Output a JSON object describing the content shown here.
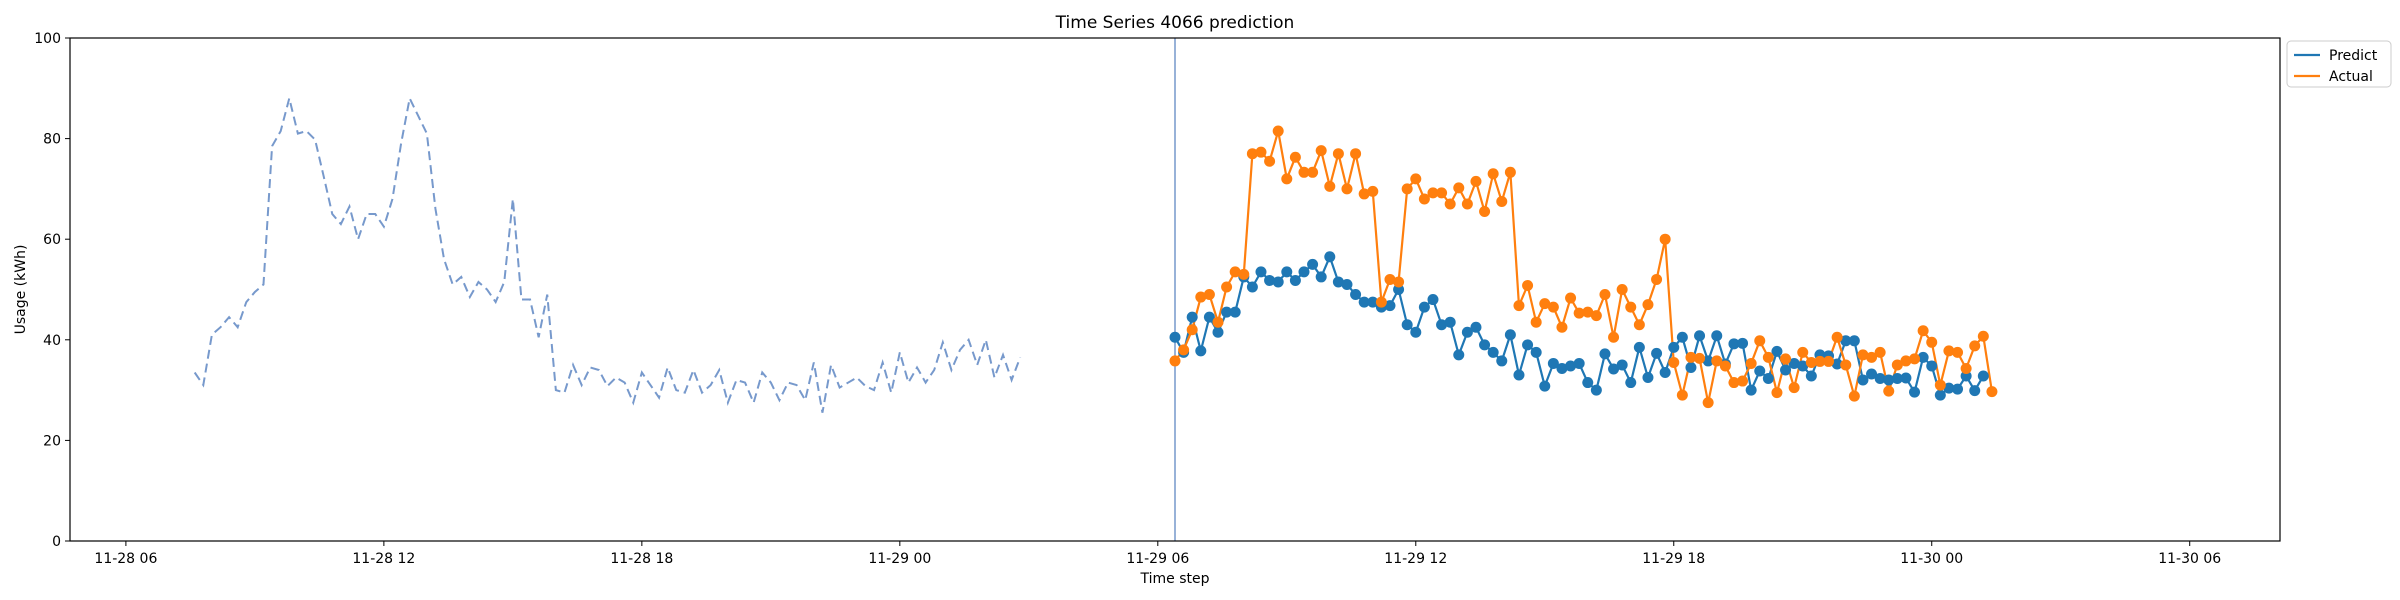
{
  "chart_data": {
    "type": "line",
    "title": "Time Series 4066 prediction",
    "xlabel": "Time step",
    "ylabel": "Usage (kWh)",
    "ylim": [
      0,
      100
    ],
    "yticks": [
      0,
      20,
      40,
      60,
      80,
      100
    ],
    "x_tick_labels": [
      "11-28 06",
      "11-28 12",
      "11-28 18",
      "11-29 00",
      "11-29 06",
      "11-29 12",
      "11-29 18",
      "11-30 00",
      "11-30 06"
    ],
    "x_unit": "hours since 11-28 00:00",
    "x_tick_positions": [
      6,
      12,
      18,
      24,
      30,
      36,
      42,
      48,
      54
    ],
    "xlim": [
      4.7,
      56.1
    ],
    "forecast_start": 30.4,
    "grid": false,
    "legend_position": "outside top-right",
    "series": [
      {
        "name": "",
        "role": "history",
        "style": "dashed",
        "color": "#7799cc",
        "x_start": 7.6,
        "x_step": 0.2,
        "values": [
          33.5,
          31,
          41,
          42.5,
          44.5,
          42.5,
          47.5,
          49.5,
          51,
          78.5,
          81.5,
          88,
          81,
          81.5,
          79.8,
          72.5,
          65,
          63,
          66.5,
          60,
          65,
          65,
          62.5,
          68,
          79,
          88,
          84.5,
          81,
          66,
          56,
          51,
          52.5,
          48.5,
          51.5,
          50,
          47.5,
          51.5,
          68,
          48,
          48,
          40.5,
          49,
          30,
          29.5,
          35,
          31,
          34.5,
          34,
          30.8,
          32.5,
          31.5,
          27.5,
          33.5,
          31,
          28.5,
          34.5,
          30,
          29.5,
          34,
          29.5,
          31,
          34,
          27.5,
          32,
          31.5,
          27.5,
          33.5,
          31.5,
          28,
          31.5,
          31,
          28,
          35.5,
          25.5,
          35,
          30.5,
          31.5,
          32.5,
          30.8,
          30,
          35.5,
          29.5,
          37.5,
          31.5,
          34.5,
          31.5,
          34,
          39.5,
          34,
          38,
          40,
          35,
          40,
          32.5,
          37,
          32,
          36.5
        ]
      },
      {
        "name": "Predict",
        "role": "predict",
        "style": "line-dot",
        "color": "#1f77b4",
        "x_start": 30.4,
        "x_step": 0.2,
        "values": [
          40.5,
          37.5,
          44.5,
          37.8,
          44.5,
          41.5,
          45.5,
          45.5,
          52.5,
          50.5,
          53.5,
          51.8,
          51.5,
          53.5,
          51.8,
          53.5,
          55,
          52.5,
          56.5,
          51.5,
          51,
          49,
          47.5,
          47.5,
          46.5,
          46.8,
          50,
          43,
          41.5,
          46.5,
          48,
          43,
          43.5,
          37,
          41.5,
          42.5,
          39,
          37.5,
          35.8,
          41,
          33,
          39,
          37.5,
          30.8,
          35.3,
          34.3,
          34.8,
          35.3,
          31.5,
          30,
          37.2,
          34.2,
          35,
          31.5,
          38.5,
          32.5,
          37.3,
          33.5,
          38.5,
          40.5,
          34.5,
          40.8,
          35.8,
          40.8,
          35.2,
          39.2,
          39.3,
          30,
          33.8,
          32.3,
          37.7,
          34,
          35.3,
          34.8,
          32.8,
          37,
          36.8,
          35.2,
          39.8,
          39.8,
          32,
          33.2,
          32.3,
          32,
          32.3,
          32.4,
          29.6,
          36.5,
          34.8,
          29,
          30.4,
          30.2,
          32.8,
          29.9,
          32.8
        ]
      },
      {
        "name": "Actual",
        "role": "actual",
        "style": "line-dot",
        "color": "#ff7f0e",
        "x_start": 30.4,
        "x_step": 0.2,
        "values": [
          35.8,
          38,
          42,
          48.5,
          49,
          43.5,
          50.5,
          53.5,
          53,
          77,
          77.3,
          75.5,
          81.5,
          72,
          76.3,
          73.3,
          73.3,
          77.6,
          70.5,
          77,
          70,
          77,
          69,
          69.5,
          47.5,
          52,
          51.5,
          70,
          72,
          68,
          69.2,
          69.2,
          67,
          70.2,
          67,
          71.5,
          65.5,
          73,
          67.5,
          73.3,
          46.8,
          50.8,
          43.5,
          47.2,
          46.5,
          42.5,
          48.3,
          45.3,
          45.5,
          44.8,
          49,
          40.5,
          50,
          46.5,
          43,
          47,
          52,
          60,
          35.5,
          29,
          36.5,
          36.3,
          27.5,
          35.8,
          34.8,
          31.5,
          31.8,
          35.3,
          39.8,
          36.5,
          29.5,
          36.2,
          30.5,
          37.5,
          35.5,
          35.7,
          35.7,
          40.5,
          35,
          28.8,
          37,
          36.5,
          37.5,
          29.8,
          35,
          35.8,
          36.2,
          41.8,
          39.5,
          31,
          37.8,
          37.5,
          34.3,
          38.8,
          40.7,
          29.7
        ]
      }
    ]
  }
}
